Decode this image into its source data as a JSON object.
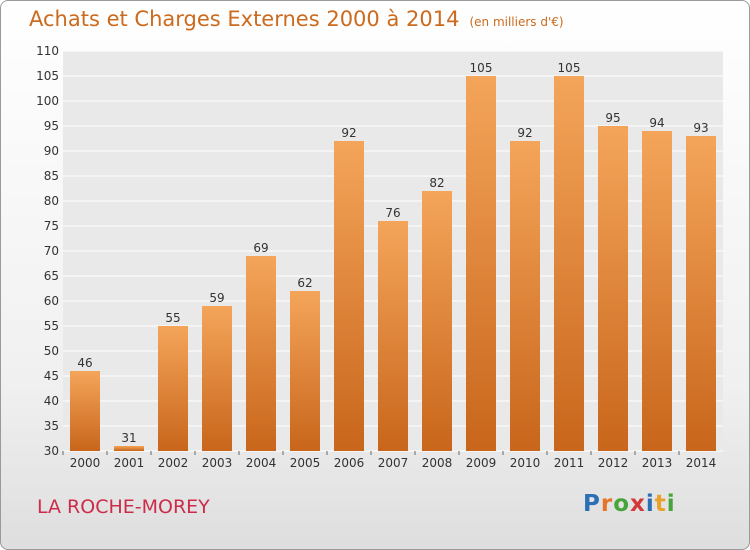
{
  "header": {
    "title": "Achats et Charges Externes 2000 à 2014",
    "subtitle": "(en milliers d'€)"
  },
  "footer": {
    "place": "LA ROCHE-MOREY",
    "logo_letters": [
      "P",
      "r",
      "o",
      "x",
      "i",
      "t",
      "i"
    ],
    "logo_colors": [
      "#2c6fb5",
      "#e8742a",
      "#46a53a",
      "#d23a3a",
      "#2c6fb5",
      "#e8a12a",
      "#46a53a"
    ]
  },
  "chart_data": {
    "type": "bar",
    "title": "Achats et Charges Externes 2000 à 2014",
    "subtitle": "(en milliers d'€)",
    "categories": [
      "2000",
      "2001",
      "2002",
      "2003",
      "2004",
      "2005",
      "2006",
      "2007",
      "2008",
      "2009",
      "2010",
      "2011",
      "2012",
      "2013",
      "2014"
    ],
    "values": [
      46,
      31,
      55,
      59,
      69,
      62,
      92,
      76,
      82,
      105,
      92,
      105,
      95,
      94,
      93
    ],
    "ylim": [
      30,
      110
    ],
    "yticks": [
      30,
      35,
      40,
      45,
      50,
      55,
      60,
      65,
      70,
      75,
      80,
      85,
      90,
      95,
      100,
      105,
      110
    ],
    "grid": true,
    "bar_color_top": "#f4a55a",
    "bar_color_bottom": "#c8661b"
  }
}
